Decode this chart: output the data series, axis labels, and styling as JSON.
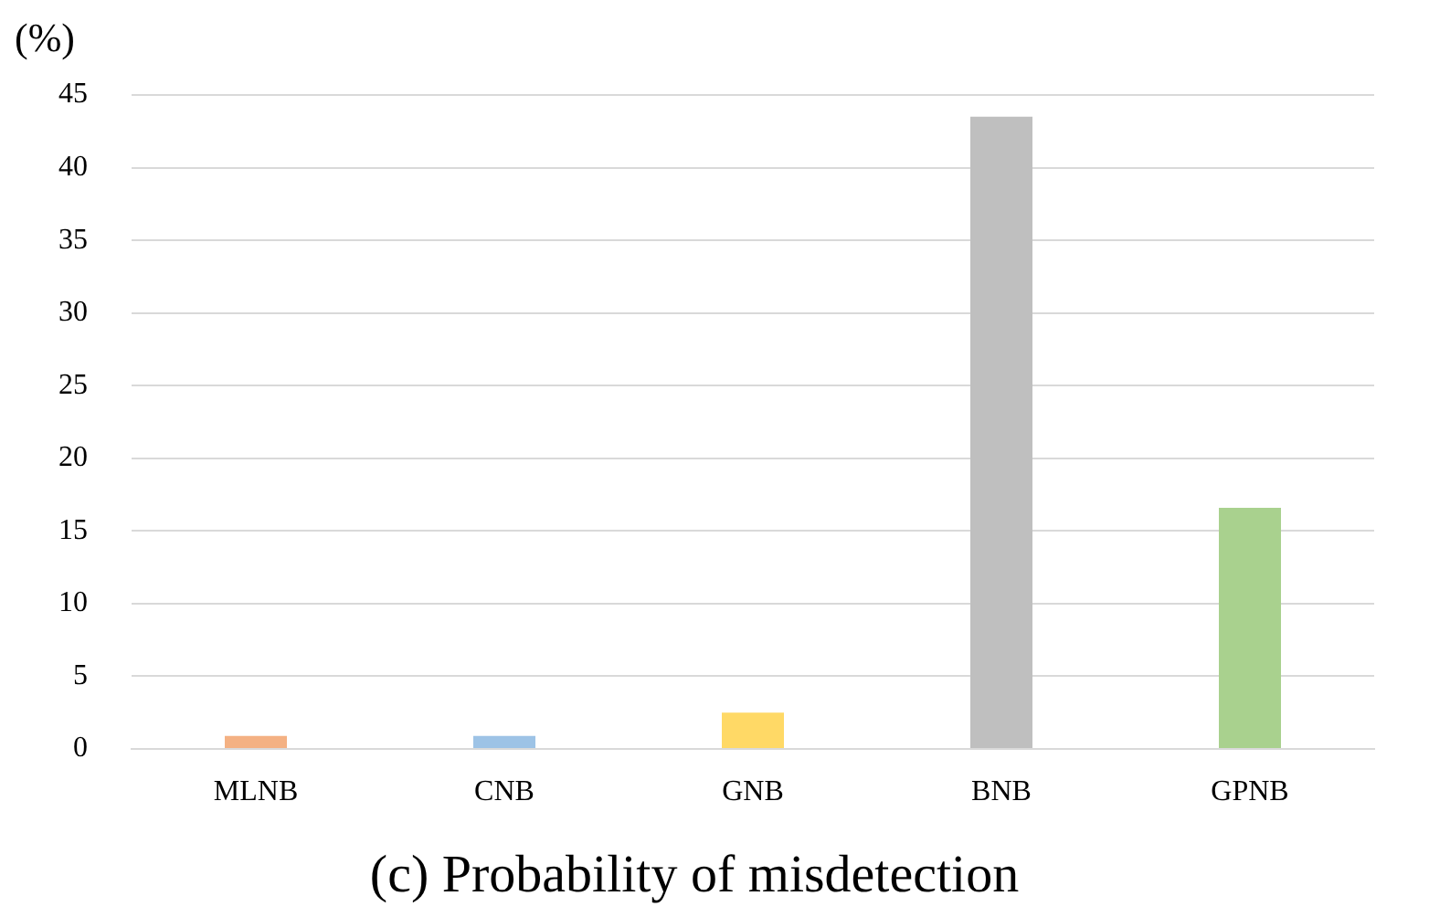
{
  "chart_data": {
    "type": "bar",
    "title": "(c) Probability of misdetection",
    "ylabel": "(%)",
    "categories": [
      "MLNB",
      "CNB",
      "GNB",
      "BNB",
      "GPNB"
    ],
    "values": [
      0.9,
      0.9,
      2.5,
      43.5,
      16.6
    ],
    "colors": [
      "#f4b183",
      "#9dc3e6",
      "#ffd966",
      "#bfbfbf",
      "#a9d18e"
    ],
    "ylim": [
      0,
      45
    ],
    "yticks": [
      0,
      5,
      10,
      15,
      20,
      25,
      30,
      35,
      40,
      45
    ],
    "grid": "y",
    "legend": false
  }
}
